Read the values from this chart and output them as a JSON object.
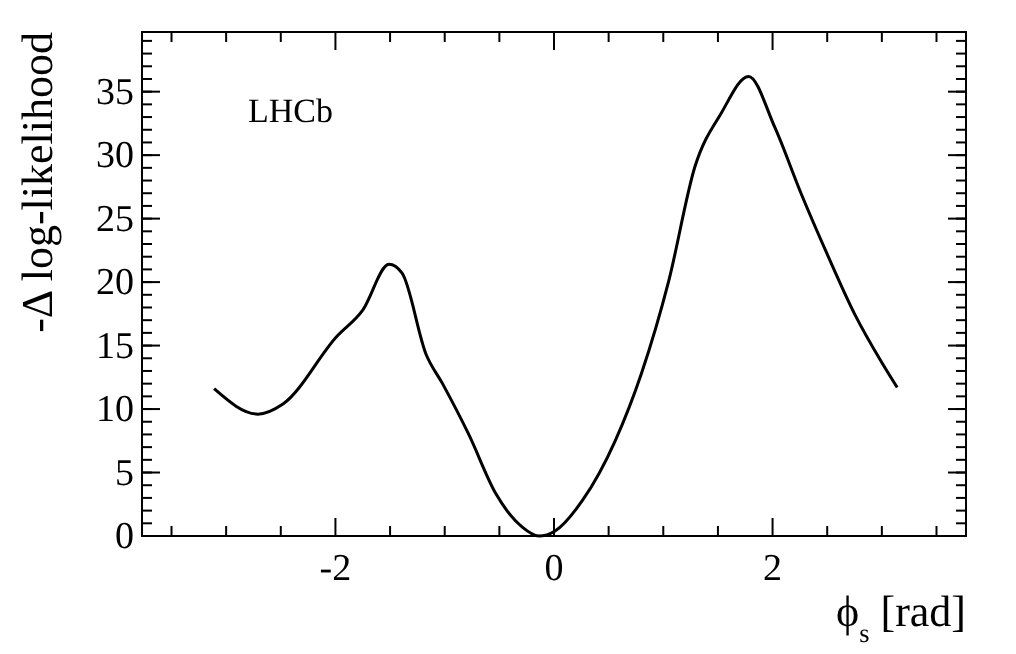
{
  "chart_data": {
    "type": "line",
    "xlabel": "ϕ$_{s}$ [rad]",
    "ylabel": "-Δ log-likelihood",
    "annotations": [
      "LHCb"
    ],
    "x": [
      -3.11,
      -2.71,
      -2.48,
      -1.99,
      -1.75,
      -1.51,
      -1.39,
      -1.17,
      -1.02,
      -0.78,
      -0.53,
      -0.29,
      -0.14,
      0.01,
      0.26,
      0.56,
      0.8,
      1.05,
      1.29,
      1.53,
      1.78,
      2.02,
      2.26,
      2.5,
      2.75,
      2.99,
      3.14
    ],
    "series": [
      {
        "color": "#000000",
        "values": [
          11.6,
          9.6,
          10.4,
          15.7,
          17.8,
          21.4,
          20.7,
          14.3,
          12.0,
          8.0,
          3.3,
          0.7,
          0,
          0.4,
          2.8,
          7.5,
          12.8,
          20.1,
          29.1,
          33.3,
          36.2,
          32.2,
          27.0,
          22.2,
          17.5,
          13.8,
          11.7
        ]
      }
    ],
    "xlim": [
      -3.77,
      3.77
    ],
    "ylim": [
      0,
      39.7
    ],
    "xticks": [
      {
        "value": -3.5,
        "label": null
      },
      {
        "value": -3,
        "label": null
      },
      {
        "value": -2.5,
        "label": null
      },
      -2,
      {
        "value": -1.5,
        "label": null
      },
      {
        "value": -1,
        "label": null
      },
      {
        "value": -0.5,
        "label": null
      },
      0,
      {
        "value": 0.5,
        "label": null
      },
      {
        "value": 1,
        "label": null
      },
      {
        "value": 1.5,
        "label": null
      },
      2,
      {
        "value": 2.5,
        "label": null
      },
      {
        "value": 3,
        "label": null
      },
      {
        "value": 3.5,
        "label": null
      }
    ],
    "yticks": [
      0,
      5,
      10,
      15,
      20,
      25,
      30,
      35
    ],
    "grid": false,
    "marker": "none",
    "line_style": "solid"
  }
}
